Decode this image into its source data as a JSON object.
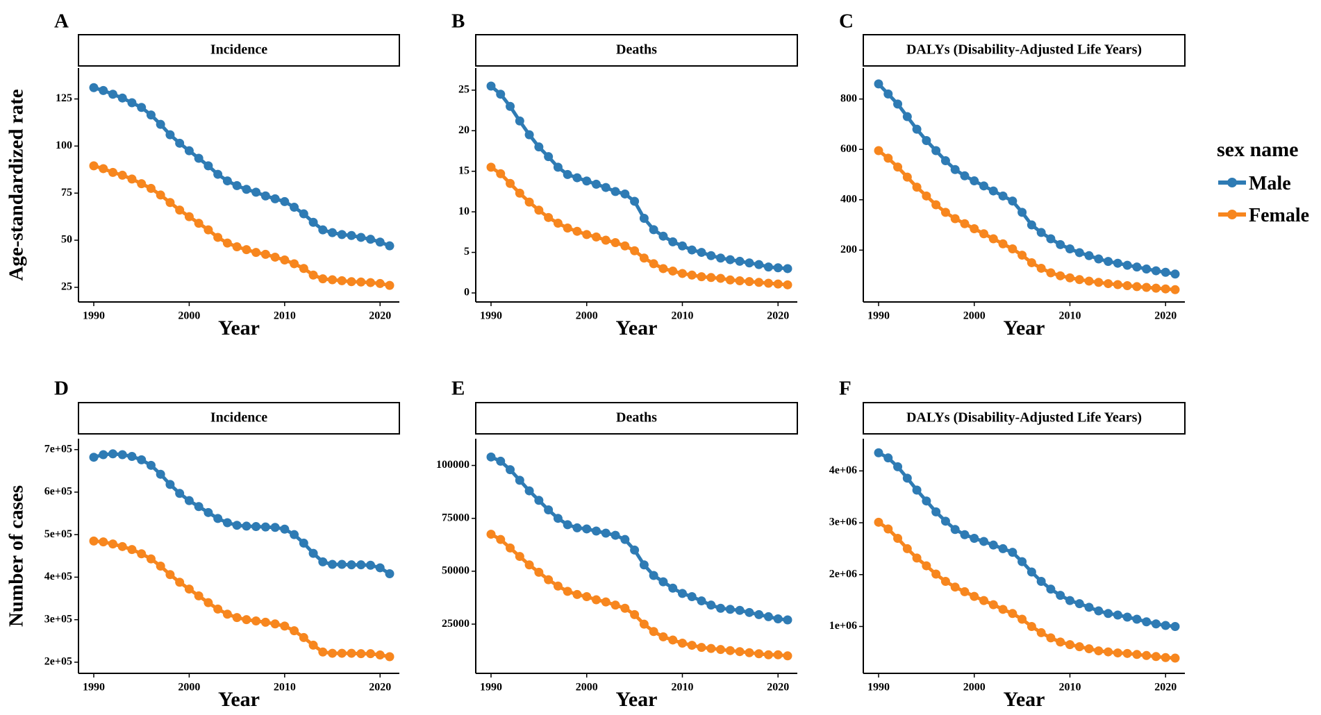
{
  "chart_data": [
    {
      "panel": "A",
      "type": "line",
      "title": "Incidence",
      "xlabel": "Year",
      "ylabel": "Age-standardized rate",
      "xlim": [
        1990,
        2021
      ],
      "xticks": [
        1990,
        2000,
        2010,
        2020
      ],
      "ylim": [
        22,
        137
      ],
      "yticks": [
        25,
        50,
        75,
        100,
        125
      ],
      "ytick_labels": [
        "25",
        "50",
        "75",
        "100",
        "125"
      ],
      "x": [
        1990,
        1991,
        1992,
        1993,
        1994,
        1995,
        1996,
        1997,
        1998,
        1999,
        2000,
        2001,
        2002,
        2003,
        2004,
        2005,
        2006,
        2007,
        2008,
        2009,
        2010,
        2011,
        2012,
        2013,
        2014,
        2015,
        2016,
        2017,
        2018,
        2019,
        2020,
        2021
      ],
      "series": [
        {
          "name": "Male",
          "values": [
            131,
            129.5,
            127.5,
            125.5,
            123,
            120.5,
            116.5,
            111.5,
            106,
            101.5,
            97.5,
            93.5,
            89.5,
            85,
            81.5,
            79,
            77,
            75.5,
            73.5,
            72,
            70.5,
            67.5,
            64,
            59.5,
            55.5,
            54,
            53,
            52.5,
            51.5,
            50.5,
            49,
            47
          ]
        },
        {
          "name": "Female",
          "values": [
            89.5,
            88,
            86,
            84.5,
            82.5,
            80,
            77.5,
            74,
            70,
            66,
            62.5,
            59,
            55.5,
            51.5,
            48.5,
            46.5,
            45,
            43.5,
            42.5,
            41,
            39.5,
            37.5,
            35,
            31.5,
            29.5,
            29,
            28.5,
            28,
            27.8,
            27.5,
            27,
            26
          ]
        }
      ]
    },
    {
      "panel": "B",
      "type": "line",
      "title": "Deaths",
      "xlabel": "Year",
      "ylabel": "",
      "xlim": [
        1990,
        2021
      ],
      "xticks": [
        1990,
        2000,
        2010,
        2020
      ],
      "ylim": [
        0,
        26.7
      ],
      "yticks": [
        0,
        5,
        10,
        15,
        20,
        25
      ],
      "ytick_labels": [
        "0",
        "5",
        "10",
        "15",
        "20",
        "25"
      ],
      "x": [
        1990,
        1991,
        1992,
        1993,
        1994,
        1995,
        1996,
        1997,
        1998,
        1999,
        2000,
        2001,
        2002,
        2003,
        2004,
        2005,
        2006,
        2007,
        2008,
        2009,
        2010,
        2011,
        2012,
        2013,
        2014,
        2015,
        2016,
        2017,
        2018,
        2019,
        2020,
        2021
      ],
      "series": [
        {
          "name": "Male",
          "values": [
            25.5,
            24.5,
            23,
            21.2,
            19.5,
            18,
            16.8,
            15.5,
            14.6,
            14.2,
            13.8,
            13.4,
            13,
            12.5,
            12.2,
            11.3,
            9.2,
            7.8,
            7,
            6.3,
            5.8,
            5.3,
            5,
            4.6,
            4.3,
            4.1,
            3.9,
            3.7,
            3.5,
            3.2,
            3.1,
            3
          ]
        },
        {
          "name": "Female",
          "values": [
            15.5,
            14.7,
            13.5,
            12.3,
            11.2,
            10.2,
            9.3,
            8.6,
            8,
            7.6,
            7.2,
            6.9,
            6.5,
            6.2,
            5.8,
            5.2,
            4.3,
            3.6,
            3,
            2.7,
            2.4,
            2.2,
            2,
            1.9,
            1.8,
            1.6,
            1.5,
            1.4,
            1.3,
            1.2,
            1.1,
            1
          ]
        }
      ]
    },
    {
      "panel": "C",
      "type": "line",
      "title": "DALYs (Disability-Adjusted Life Years)",
      "xlabel": "Year",
      "ylabel": "",
      "xlim": [
        1990,
        2021
      ],
      "xticks": [
        1990,
        2000,
        2010,
        2020
      ],
      "ylim": [
        30,
        890
      ],
      "yticks": [
        200,
        400,
        600,
        800
      ],
      "ytick_labels": [
        "200",
        "400",
        "600",
        "800"
      ],
      "x": [
        1990,
        1991,
        1992,
        1993,
        1994,
        1995,
        1996,
        1997,
        1998,
        1999,
        2000,
        2001,
        2002,
        2003,
        2004,
        2005,
        2006,
        2007,
        2008,
        2009,
        2010,
        2011,
        2012,
        2013,
        2014,
        2015,
        2016,
        2017,
        2018,
        2019,
        2020,
        2021
      ],
      "series": [
        {
          "name": "Male",
          "values": [
            860,
            820,
            780,
            730,
            680,
            635,
            595,
            555,
            520,
            495,
            475,
            455,
            435,
            415,
            395,
            350,
            300,
            270,
            245,
            222,
            205,
            190,
            178,
            165,
            155,
            148,
            140,
            133,
            125,
            118,
            112,
            105
          ]
        },
        {
          "name": "Female",
          "values": [
            595,
            565,
            530,
            490,
            450,
            415,
            380,
            350,
            325,
            305,
            285,
            265,
            245,
            225,
            205,
            180,
            150,
            128,
            110,
            98,
            90,
            83,
            77,
            72,
            67,
            63,
            59,
            55,
            52,
            49,
            46,
            43
          ]
        }
      ]
    },
    {
      "panel": "D",
      "type": "line",
      "title": "Incidence",
      "xlabel": "Year",
      "ylabel": "Number of cases",
      "xlim": [
        1990,
        2021
      ],
      "xticks": [
        1990,
        2000,
        2010,
        2020
      ],
      "ylim": [
        195000,
        706000
      ],
      "yticks": [
        200000,
        300000,
        400000,
        500000,
        600000,
        700000
      ],
      "ytick_labels": [
        "2e+05",
        "3e+05",
        "4e+05",
        "5e+05",
        "6e+05",
        "7e+05"
      ],
      "x": [
        1990,
        1991,
        1992,
        1993,
        1994,
        1995,
        1996,
        1997,
        1998,
        1999,
        2000,
        2001,
        2002,
        2003,
        2004,
        2005,
        2006,
        2007,
        2008,
        2009,
        2010,
        2011,
        2012,
        2013,
        2014,
        2015,
        2016,
        2017,
        2018,
        2019,
        2020,
        2021
      ],
      "series": [
        {
          "name": "Male",
          "values": [
            682000,
            688000,
            690000,
            688000,
            684000,
            676000,
            663000,
            642000,
            618000,
            597000,
            580000,
            566000,
            552000,
            538000,
            528000,
            522000,
            520000,
            519000,
            518000,
            517000,
            513000,
            500000,
            480000,
            456000,
            436000,
            430000,
            430000,
            429000,
            429000,
            428000,
            422000,
            408000
          ]
        },
        {
          "name": "Female",
          "values": [
            485000,
            483000,
            478000,
            472000,
            465000,
            455000,
            443000,
            426000,
            406000,
            388000,
            372000,
            356000,
            340000,
            325000,
            313000,
            305000,
            300000,
            297000,
            294000,
            290000,
            285000,
            274000,
            258000,
            240000,
            224000,
            221000,
            221000,
            221000,
            220000,
            220000,
            217000,
            213000
          ]
        }
      ]
    },
    {
      "panel": "E",
      "type": "line",
      "title": "Deaths",
      "xlabel": "Year",
      "ylabel": "",
      "xlim": [
        1990,
        2021
      ],
      "xticks": [
        1990,
        2000,
        2010,
        2020
      ],
      "ylim": [
        6000,
        108700
      ],
      "yticks": [
        25000,
        50000,
        75000,
        100000
      ],
      "ytick_labels": [
        "25000",
        "50000",
        "75000",
        "100000"
      ],
      "x": [
        1990,
        1991,
        1992,
        1993,
        1994,
        1995,
        1996,
        1997,
        1998,
        1999,
        2000,
        2001,
        2002,
        2003,
        2004,
        2005,
        2006,
        2007,
        2008,
        2009,
        2010,
        2011,
        2012,
        2013,
        2014,
        2015,
        2016,
        2017,
        2018,
        2019,
        2020,
        2021
      ],
      "series": [
        {
          "name": "Male",
          "values": [
            104000,
            102000,
            98000,
            93000,
            88000,
            83500,
            79000,
            75000,
            72000,
            70500,
            70000,
            69000,
            68000,
            67000,
            65000,
            60000,
            53000,
            48000,
            45000,
            42000,
            39500,
            38000,
            36000,
            34000,
            32500,
            32000,
            31500,
            30500,
            29500,
            28500,
            27500,
            27000
          ]
        },
        {
          "name": "Female",
          "values": [
            67500,
            65000,
            61000,
            57000,
            53000,
            49500,
            46000,
            43000,
            40500,
            39000,
            38000,
            36500,
            35500,
            34000,
            32500,
            29500,
            25000,
            21500,
            19000,
            17500,
            16000,
            15000,
            14000,
            13500,
            13000,
            12500,
            12000,
            11500,
            11000,
            10500,
            10500,
            10000
          ]
        }
      ]
    },
    {
      "panel": "F",
      "type": "line",
      "title": "DALYs (Disability-Adjusted Life Years)",
      "xlabel": "Year",
      "ylabel": "",
      "xlim": [
        1990,
        2021
      ],
      "xticks": [
        1990,
        2000,
        2010,
        2020
      ],
      "ylim": [
        270000,
        4460000
      ],
      "yticks": [
        1000000,
        2000000,
        3000000,
        4000000
      ],
      "ytick_labels": [
        "1e+06",
        "2e+06",
        "3e+06",
        "4e+06"
      ],
      "x": [
        1990,
        1991,
        1992,
        1993,
        1994,
        1995,
        1996,
        1997,
        1998,
        1999,
        2000,
        2001,
        2002,
        2003,
        2004,
        2005,
        2006,
        2007,
        2008,
        2009,
        2010,
        2011,
        2012,
        2013,
        2014,
        2015,
        2016,
        2017,
        2018,
        2019,
        2020,
        2021
      ],
      "series": [
        {
          "name": "Male",
          "values": [
            4350000,
            4250000,
            4080000,
            3860000,
            3630000,
            3420000,
            3210000,
            3030000,
            2870000,
            2770000,
            2700000,
            2640000,
            2570000,
            2500000,
            2430000,
            2250000,
            2050000,
            1870000,
            1720000,
            1600000,
            1500000,
            1440000,
            1370000,
            1300000,
            1250000,
            1220000,
            1180000,
            1140000,
            1090000,
            1050000,
            1020000,
            1000000
          ]
        },
        {
          "name": "Female",
          "values": [
            3010000,
            2880000,
            2700000,
            2500000,
            2320000,
            2170000,
            2010000,
            1870000,
            1760000,
            1670000,
            1580000,
            1500000,
            1420000,
            1330000,
            1250000,
            1140000,
            1000000,
            880000,
            780000,
            700000,
            650000,
            610000,
            570000,
            530000,
            510000,
            490000,
            480000,
            460000,
            440000,
            420000,
            400000,
            390000
          ]
        }
      ]
    }
  ],
  "legend": {
    "title": "sex name",
    "items": [
      {
        "label": "Male",
        "color": "#2e7bb4"
      },
      {
        "label": "Female",
        "color": "#f7861e"
      }
    ]
  }
}
